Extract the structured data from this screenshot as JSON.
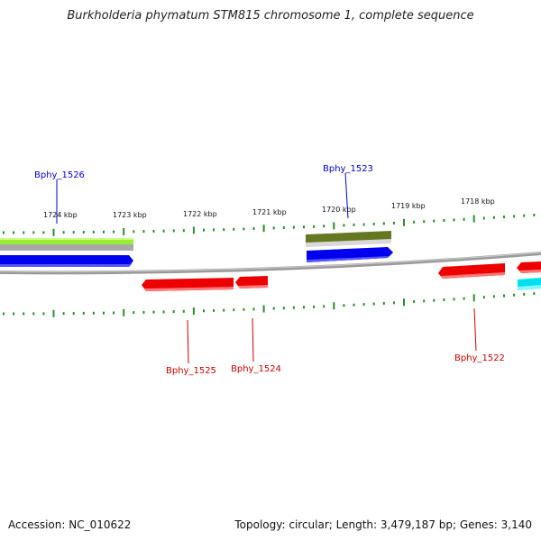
{
  "title": "Burkholderia phymatum STM815 chromosome 1, complete sequence",
  "footer": {
    "accession": "Accession: NC_010622",
    "topology": "Topology: circular; Length: 3,479,187 bp; Genes: 3,140"
  },
  "ruler_labels": [
    "1724 kbp",
    "1723 kbp",
    "1722 kbp",
    "1721 kbp",
    "1720 kbp",
    "1719 kbp",
    "1718 kbp"
  ],
  "gene_labels": [
    "Bphy_1526",
    "Bphy_1523",
    "Bphy_1525",
    "Bphy_1524",
    "Bphy_1522"
  ],
  "colors": {
    "backbone": "#888888",
    "ruler_ticks": "#2e8b2e",
    "forward_cds": "#0000ee",
    "reverse_cds": "#ee0000",
    "label_forward": "#0000cc",
    "label_reverse": "#cc0000",
    "feature_lightgreen": "#99ee33",
    "feature_olive": "#667722",
    "feature_cyan": "#00e0ee"
  }
}
